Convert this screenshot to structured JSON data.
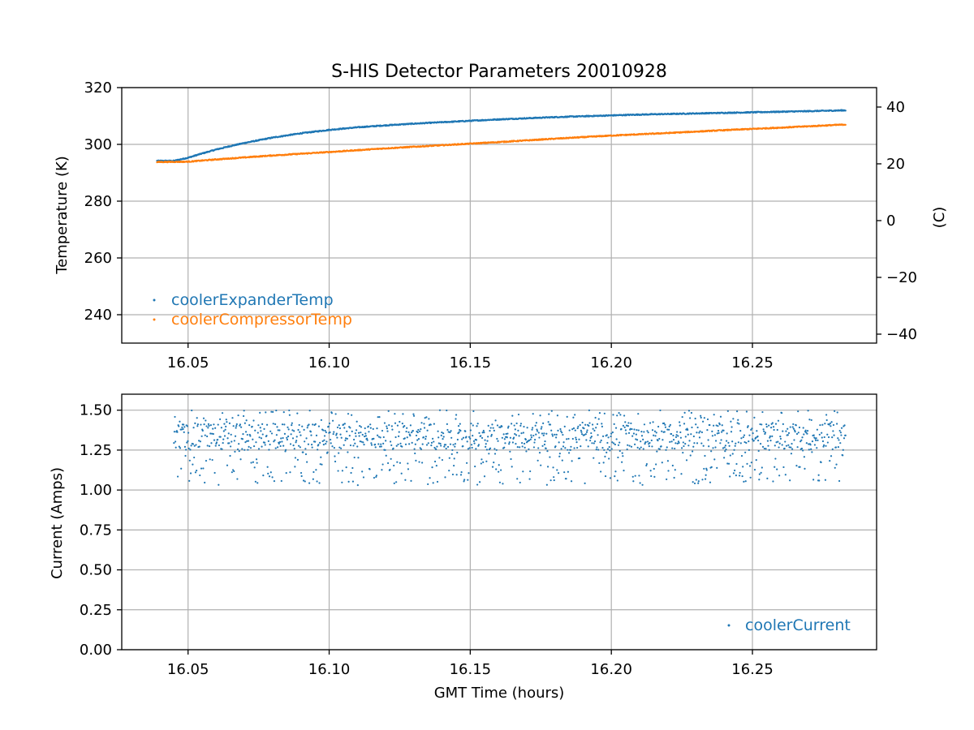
{
  "figure": {
    "title": "S-HIS Detector Parameters 20010928"
  },
  "chart_data": [
    {
      "type": "scatter",
      "panel": "top",
      "title": "S-HIS Detector Parameters 20010928",
      "xlabel": "",
      "ylabel": "Temperature (K)",
      "y2label": "(C)",
      "xlim": [
        16.0265,
        16.294
      ],
      "ylim": [
        230,
        320
      ],
      "y2lim": [
        -43.15,
        46.85
      ],
      "xticks": [
        "16.05",
        "16.10",
        "16.15",
        "16.20",
        "16.25"
      ],
      "yticks": [
        "240",
        "260",
        "280",
        "300",
        "320"
      ],
      "y2ticks": [
        "−40",
        "−20",
        "0",
        "20",
        "40"
      ],
      "grid": true,
      "legend_position": "lower-left",
      "x_range": [
        16.039,
        16.283
      ],
      "series": [
        {
          "name": "coolerExpanderTemp",
          "color": "#1f77b4",
          "x": [
            16.039,
            16.045,
            16.05,
            16.055,
            16.06,
            16.065,
            16.07,
            16.08,
            16.09,
            16.1,
            16.11,
            16.12,
            16.13,
            16.14,
            16.15,
            16.16,
            16.17,
            16.18,
            16.19,
            16.2,
            16.21,
            16.22,
            16.23,
            16.24,
            16.25,
            16.26,
            16.27,
            16.283
          ],
          "y": [
            294.2,
            294.2,
            295.3,
            296.8,
            298.2,
            299.4,
            300.5,
            302.4,
            303.9,
            305.1,
            306.0,
            306.7,
            307.3,
            307.8,
            308.3,
            308.8,
            309.2,
            309.6,
            309.9,
            310.2,
            310.5,
            310.7,
            310.9,
            311.1,
            311.3,
            311.5,
            311.7,
            312.0
          ]
        },
        {
          "name": "coolerCompressorTemp",
          "color": "#ff7f0e",
          "x": [
            16.039,
            16.05,
            16.06,
            16.07,
            16.08,
            16.1,
            16.12,
            16.14,
            16.16,
            16.18,
            16.2,
            16.22,
            16.24,
            16.26,
            16.283
          ],
          "y": [
            293.8,
            293.9,
            294.7,
            295.4,
            296.1,
            297.3,
            298.6,
            299.7,
            300.8,
            302.0,
            303.1,
            304.0,
            305.0,
            305.9,
            307.0
          ]
        }
      ]
    },
    {
      "type": "scatter",
      "panel": "bottom",
      "xlabel": "GMT Time (hours)",
      "ylabel": "Current (Amps)",
      "xlim": [
        16.0265,
        16.294
      ],
      "ylim": [
        0.0,
        1.6
      ],
      "xticks": [
        "16.05",
        "16.10",
        "16.15",
        "16.20",
        "16.25"
      ],
      "yticks": [
        "0.00",
        "0.25",
        "0.50",
        "0.75",
        "1.00",
        "1.25",
        "1.50"
      ],
      "grid": true,
      "legend_position": "lower-right",
      "series": [
        {
          "name": "coolerCurrent",
          "color": "#1f77b4",
          "x_range": [
            16.045,
            16.283
          ],
          "y_range": [
            1.03,
            1.5
          ],
          "dense_band": [
            1.25,
            1.42
          ],
          "point_count": 1400
        }
      ]
    }
  ]
}
